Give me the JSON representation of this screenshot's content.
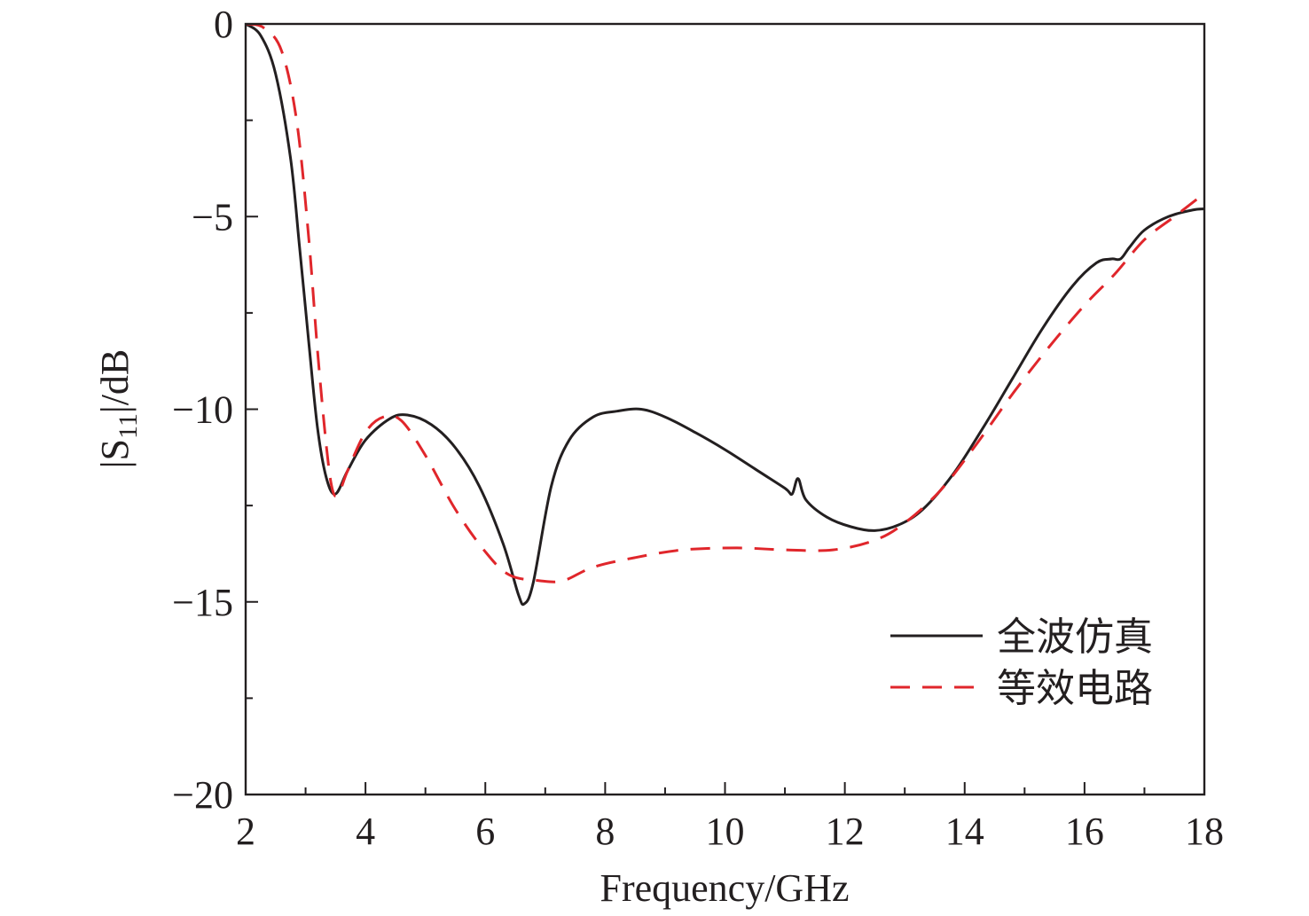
{
  "chart_data": {
    "type": "line",
    "xlabel": "Frequency/GHz",
    "ylabel": {
      "prefix": "|S",
      "subscript": "11",
      "suffix": "|/dB"
    },
    "xlim": [
      2,
      18
    ],
    "ylim": [
      -20,
      0
    ],
    "x_ticks": [
      2,
      4,
      6,
      8,
      10,
      12,
      14,
      16,
      18
    ],
    "x_tick_labels": [
      "2",
      "4",
      "6",
      "8",
      "10",
      "12",
      "14",
      "16",
      "18"
    ],
    "y_ticks": [
      0,
      -5,
      -10,
      -15,
      -20
    ],
    "y_tick_labels": [
      "0",
      "−5",
      "−10",
      "−15",
      "−20"
    ],
    "legend_position": "lower-right",
    "grid": false,
    "series": [
      {
        "name": "全波仿真",
        "style": "solid",
        "color": "#231f20",
        "points": [
          [
            2.0,
            0.0
          ],
          [
            2.25,
            -0.3
          ],
          [
            2.5,
            -1.3
          ],
          [
            2.75,
            -3.5
          ],
          [
            2.9,
            -5.8
          ],
          [
            3.05,
            -8.2
          ],
          [
            3.2,
            -10.5
          ],
          [
            3.35,
            -11.8
          ],
          [
            3.5,
            -12.2
          ],
          [
            3.7,
            -11.6
          ],
          [
            4.0,
            -10.8
          ],
          [
            4.4,
            -10.25
          ],
          [
            4.7,
            -10.15
          ],
          [
            5.1,
            -10.4
          ],
          [
            5.5,
            -11.0
          ],
          [
            5.9,
            -12.0
          ],
          [
            6.3,
            -13.5
          ],
          [
            6.55,
            -14.8
          ],
          [
            6.65,
            -15.05
          ],
          [
            6.8,
            -14.5
          ],
          [
            7.1,
            -12.0
          ],
          [
            7.4,
            -10.8
          ],
          [
            7.8,
            -10.2
          ],
          [
            8.2,
            -10.05
          ],
          [
            8.6,
            -10.0
          ],
          [
            9.0,
            -10.2
          ],
          [
            9.5,
            -10.6
          ],
          [
            10.0,
            -11.05
          ],
          [
            10.5,
            -11.55
          ],
          [
            11.0,
            -12.05
          ],
          [
            11.12,
            -12.2
          ],
          [
            11.22,
            -11.8
          ],
          [
            11.35,
            -12.35
          ],
          [
            11.7,
            -12.8
          ],
          [
            12.1,
            -13.05
          ],
          [
            12.5,
            -13.15
          ],
          [
            12.9,
            -13.0
          ],
          [
            13.3,
            -12.6
          ],
          [
            13.8,
            -11.7
          ],
          [
            14.3,
            -10.5
          ],
          [
            14.8,
            -9.2
          ],
          [
            15.3,
            -7.9
          ],
          [
            15.8,
            -6.8
          ],
          [
            16.2,
            -6.2
          ],
          [
            16.45,
            -6.1
          ],
          [
            16.6,
            -6.1
          ],
          [
            16.75,
            -5.8
          ],
          [
            17.0,
            -5.35
          ],
          [
            17.4,
            -5.0
          ],
          [
            17.8,
            -4.83
          ],
          [
            18.0,
            -4.8
          ]
        ]
      },
      {
        "name": "等效电路",
        "style": "dashed",
        "color": "#e0262b",
        "points": [
          [
            2.0,
            0.0
          ],
          [
            2.3,
            -0.1
          ],
          [
            2.6,
            -0.7
          ],
          [
            2.85,
            -2.5
          ],
          [
            3.05,
            -5.5
          ],
          [
            3.2,
            -8.5
          ],
          [
            3.35,
            -11.0
          ],
          [
            3.45,
            -12.1
          ],
          [
            3.55,
            -12.2
          ],
          [
            3.7,
            -11.6
          ],
          [
            4.0,
            -10.6
          ],
          [
            4.3,
            -10.2
          ],
          [
            4.6,
            -10.3
          ],
          [
            5.0,
            -11.2
          ],
          [
            5.5,
            -12.6
          ],
          [
            6.0,
            -13.7
          ],
          [
            6.4,
            -14.3
          ],
          [
            6.9,
            -14.45
          ],
          [
            7.3,
            -14.45
          ],
          [
            7.8,
            -14.1
          ],
          [
            8.5,
            -13.85
          ],
          [
            9.3,
            -13.65
          ],
          [
            10.2,
            -13.6
          ],
          [
            11.0,
            -13.65
          ],
          [
            11.8,
            -13.65
          ],
          [
            12.5,
            -13.4
          ],
          [
            13.0,
            -12.95
          ],
          [
            13.6,
            -12.1
          ],
          [
            14.2,
            -10.9
          ],
          [
            14.8,
            -9.6
          ],
          [
            15.4,
            -8.4
          ],
          [
            16.0,
            -7.3
          ],
          [
            16.5,
            -6.5
          ],
          [
            17.0,
            -5.6
          ],
          [
            17.5,
            -5.0
          ],
          [
            18.0,
            -4.4
          ]
        ]
      }
    ]
  }
}
